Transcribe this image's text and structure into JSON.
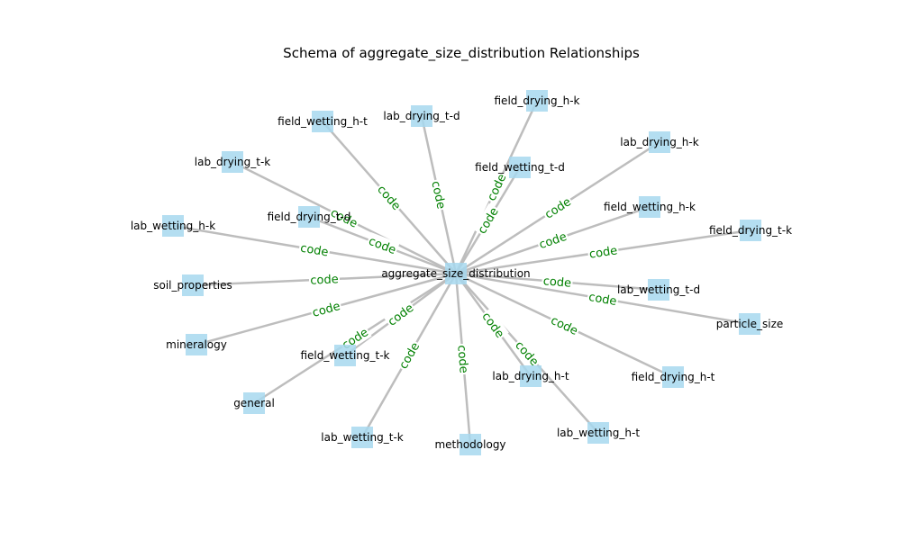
{
  "title": "Schema of aggregate_size_distribution Relationships",
  "colors": {
    "node": "#a7d8ef",
    "edge": "#bdbdbd",
    "edge_label": "#008000"
  },
  "center": {
    "id": "aggregate_size_distribution",
    "label": "aggregate_size_distribution"
  },
  "edge_label": "code",
  "nodes": [
    {
      "id": "field_wetting_h-t",
      "label": "field_wetting_h-t"
    },
    {
      "id": "lab_drying_t-d",
      "label": "lab_drying_t-d"
    },
    {
      "id": "field_drying_h-k",
      "label": "field_drying_h-k"
    },
    {
      "id": "lab_drying_t-k",
      "label": "lab_drying_t-k"
    },
    {
      "id": "field_wetting_t-d",
      "label": "field_wetting_t-d"
    },
    {
      "id": "lab_drying_h-k",
      "label": "lab_drying_h-k"
    },
    {
      "id": "field_drying_t-d",
      "label": "field_drying_t-d"
    },
    {
      "id": "field_wetting_h-k",
      "label": "field_wetting_h-k"
    },
    {
      "id": "lab_wetting_h-k",
      "label": "lab_wetting_h-k"
    },
    {
      "id": "field_drying_t-k",
      "label": "field_drying_t-k"
    },
    {
      "id": "soil_properties",
      "label": "soil_properties"
    },
    {
      "id": "lab_wetting_t-d",
      "label": "lab_wetting_t-d"
    },
    {
      "id": "particle_size",
      "label": "particle_size"
    },
    {
      "id": "mineralogy",
      "label": "mineralogy"
    },
    {
      "id": "field_wetting_t-k",
      "label": "field_wetting_t-k"
    },
    {
      "id": "lab_drying_h-t",
      "label": "lab_drying_h-t"
    },
    {
      "id": "field_drying_h-t",
      "label": "field_drying_h-t"
    },
    {
      "id": "general",
      "label": "general"
    },
    {
      "id": "lab_wetting_t-k",
      "label": "lab_wetting_t-k"
    },
    {
      "id": "methodology",
      "label": "methodology"
    },
    {
      "id": "lab_wetting_h-t",
      "label": "lab_wetting_h-t"
    }
  ]
}
